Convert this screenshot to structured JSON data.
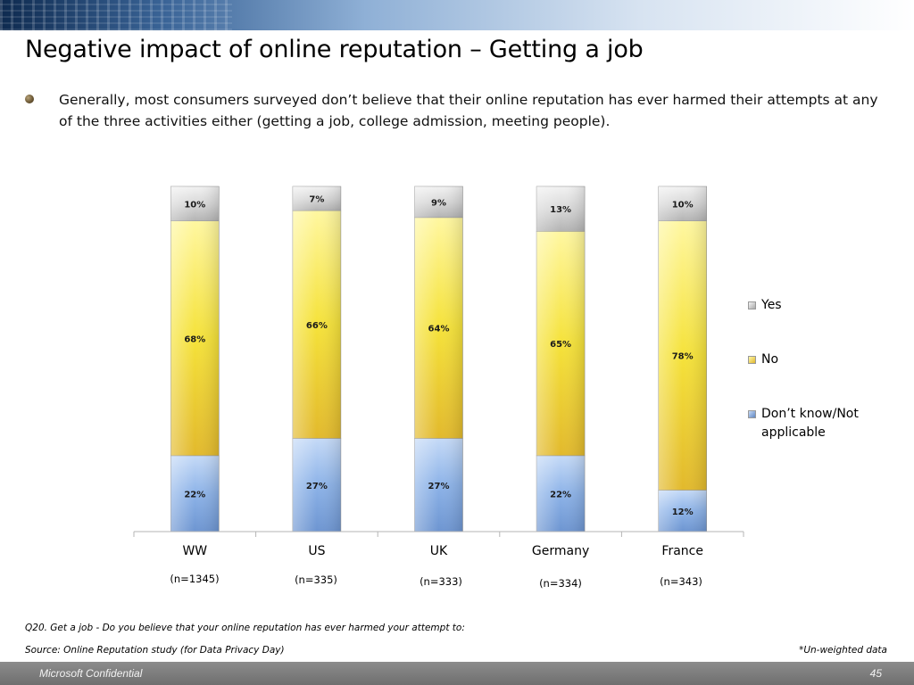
{
  "slide": {
    "title": "Negative impact of online reputation – Getting a job",
    "bullet": "Generally, most consumers  surveyed don’t believe that their online reputation has ever harmed their attempts at any of the three activities either (getting a job, college admission, meeting people).",
    "footnote_question": "Q20. Get a job - Do you believe that your online reputation has ever harmed your attempt to:",
    "footnote_source": "Source: Online Reputation study (for Data Privacy Day)",
    "weight_note": "*Un-weighted data",
    "footer_left": "Microsoft Confidential",
    "page_number": "45"
  },
  "chart_data": {
    "type": "bar",
    "stacked": true,
    "percent_scale": true,
    "categories": [
      "WW",
      "US",
      "UK",
      "Germany",
      "France"
    ],
    "sample_sizes": [
      "(n=1345)",
      "(n=335)",
      "(n=333)",
      "(n=334)",
      "(n=343)"
    ],
    "series": [
      {
        "name": "Don’t know/Not applicable",
        "values": [
          22,
          27,
          27,
          22,
          12
        ],
        "labels": [
          "22%",
          "27%",
          "27%",
          "22%",
          "12%"
        ],
        "color": "#8db3e8"
      },
      {
        "name": "No",
        "values": [
          68,
          66,
          64,
          65,
          78
        ],
        "labels": [
          "68%",
          "66%",
          "64%",
          "65%",
          "78%"
        ],
        "color": "#f6e43a"
      },
      {
        "name": "Yes",
        "values": [
          10,
          7,
          9,
          13,
          10
        ],
        "labels": [
          "10%",
          "7%",
          "9%",
          "13%",
          "10%"
        ],
        "color": "#d9d9d9"
      }
    ],
    "legend": {
      "position": "right",
      "order": [
        "Yes",
        "No",
        "Don’t know/Not applicable"
      ]
    },
    "ylim": [
      0,
      100
    ],
    "grid": false,
    "xlabel": "",
    "ylabel": ""
  }
}
